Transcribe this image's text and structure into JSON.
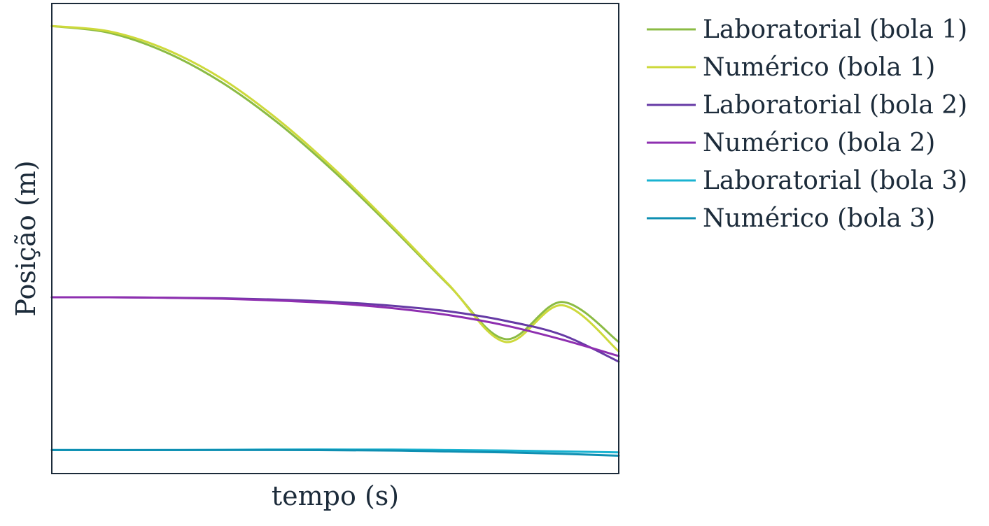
{
  "chart_data": {
    "type": "line",
    "title": "",
    "xlabel": "tempo (s)",
    "ylabel": "Posição (m)",
    "x_ticks_visible": false,
    "y_ticks_visible": false,
    "grid": false,
    "legend_position": "outside-right-top",
    "xlim": [
      0,
      1
    ],
    "ylim": [
      0,
      1
    ],
    "series": [
      {
        "name": "Laboratorial (bola 1)",
        "color": "#8bbb44",
        "x": [
          0,
          0.1,
          0.2,
          0.3,
          0.4,
          0.5,
          0.6,
          0.7,
          0.8,
          0.9,
          1.0
        ],
        "y": [
          0.952,
          0.938,
          0.897,
          0.832,
          0.745,
          0.64,
          0.523,
          0.401,
          0.286,
          0.365,
          0.28
        ]
      },
      {
        "name": "Numérico (bola 1)",
        "color": "#cdd93b",
        "x": [
          0,
          0.1,
          0.2,
          0.3,
          0.4,
          0.5,
          0.6,
          0.7,
          0.8,
          0.9,
          1.0
        ],
        "y": [
          0.952,
          0.941,
          0.903,
          0.84,
          0.752,
          0.646,
          0.527,
          0.402,
          0.28,
          0.358,
          0.26
        ]
      },
      {
        "name": "Laboratorial (bola 2)",
        "color": "#663aa5",
        "x": [
          0,
          0.1,
          0.2,
          0.3,
          0.4,
          0.5,
          0.6,
          0.7,
          0.8,
          0.9,
          1.0
        ],
        "y": [
          0.375,
          0.375,
          0.374,
          0.373,
          0.37,
          0.365,
          0.357,
          0.345,
          0.325,
          0.295,
          0.238
        ]
      },
      {
        "name": "Numérico (bola 2)",
        "color": "#8e2fb0",
        "x": [
          0,
          0.1,
          0.2,
          0.3,
          0.4,
          0.5,
          0.6,
          0.7,
          0.8,
          0.9,
          1.0
        ],
        "y": [
          0.375,
          0.375,
          0.374,
          0.372,
          0.368,
          0.362,
          0.352,
          0.337,
          0.315,
          0.285,
          0.25
        ]
      },
      {
        "name": "Laboratorial (bola 3)",
        "color": "#1ab3d1",
        "x": [
          0,
          0.2,
          0.4,
          0.6,
          0.7,
          0.8,
          0.9,
          1.0
        ],
        "y": [
          0.05,
          0.05,
          0.051,
          0.051,
          0.05,
          0.049,
          0.047,
          0.045
        ]
      },
      {
        "name": "Numérico (bola 3)",
        "color": "#0e8fb2",
        "x": [
          0,
          0.2,
          0.4,
          0.6,
          0.7,
          0.8,
          0.9,
          1.0
        ],
        "y": [
          0.05,
          0.05,
          0.05,
          0.049,
          0.047,
          0.045,
          0.042,
          0.038
        ]
      }
    ]
  }
}
